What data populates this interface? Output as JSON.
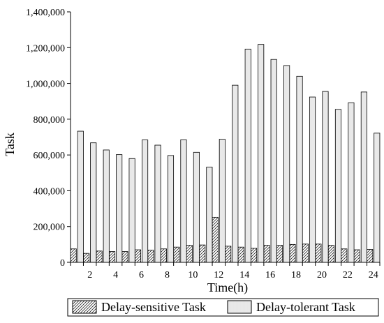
{
  "chart_data": {
    "type": "bar",
    "title": "",
    "xlabel": "Time(h)",
    "ylabel": "Task",
    "ylim": [
      0,
      1400000
    ],
    "yticks": [
      0,
      200000,
      400000,
      600000,
      800000,
      1000000,
      1200000,
      1400000
    ],
    "ytick_labels": [
      "0",
      "200,000",
      "400,000",
      "600,000",
      "800,000",
      "1,000,000",
      "1,200,000",
      "1,400,000"
    ],
    "xtick_labels": [
      "2",
      "4",
      "6",
      "8",
      "10",
      "12",
      "14",
      "16",
      "18",
      "20",
      "22",
      "24"
    ],
    "categories": [
      "1",
      "2",
      "3",
      "4",
      "5",
      "6",
      "7",
      "8",
      "9",
      "10",
      "11",
      "12",
      "13",
      "14",
      "15",
      "16",
      "17",
      "18",
      "19",
      "20",
      "21",
      "22",
      "23",
      "24"
    ],
    "grid": false,
    "legend_position": "bottom",
    "series": [
      {
        "name": "Delay-sensitive Task",
        "pattern": "diagonal-hatch",
        "values": [
          75000,
          50000,
          63000,
          60000,
          60000,
          70000,
          68000,
          75000,
          85000,
          95000,
          97000,
          252000,
          90000,
          85000,
          78000,
          95000,
          95000,
          100000,
          102000,
          102000,
          95000,
          75000,
          70000,
          72000
        ]
      },
      {
        "name": "Delay-tolerant Task",
        "pattern": "dense-vertical",
        "values": [
          733000,
          668000,
          628000,
          602000,
          580000,
          684000,
          655000,
          597000,
          685000,
          615000,
          532000,
          688000,
          990000,
          1192000,
          1218000,
          1134000,
          1100000,
          1040000,
          924000,
          955000,
          855000,
          892000,
          952000,
          722000
        ]
      }
    ]
  }
}
